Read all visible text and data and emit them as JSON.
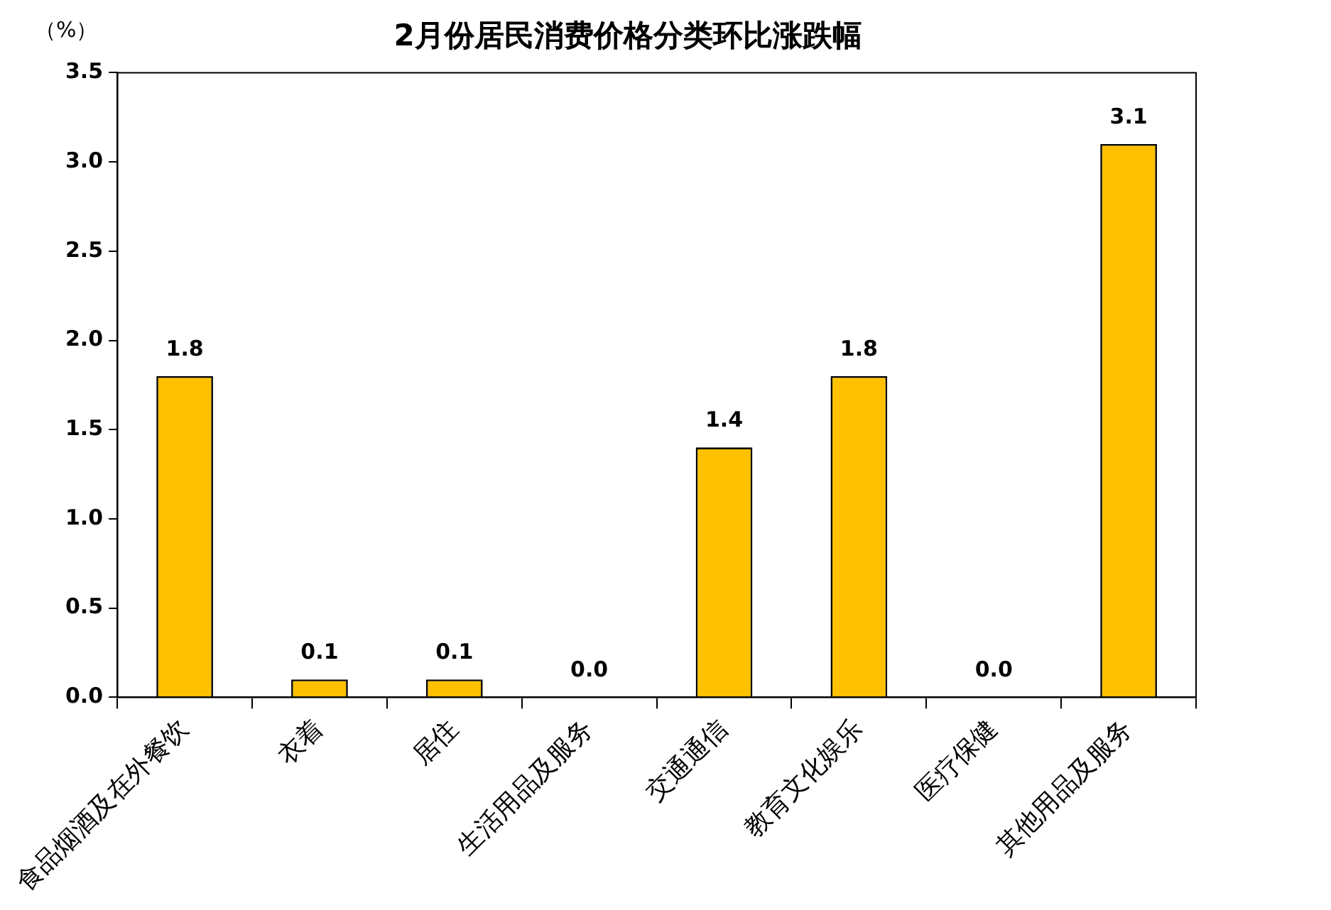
{
  "chart_data": {
    "type": "bar",
    "title": "2月份居民消费价格分类环比涨跌幅",
    "ylabel": "（%）",
    "categories": [
      "食品烟酒及在外餐饮",
      "衣着",
      "居住",
      "生活用品及服务",
      "交通通信",
      "教育文化娱乐",
      "医疗保健",
      "其他用品及服务"
    ],
    "values": [
      1.8,
      0.1,
      0.1,
      0,
      1.4,
      1.8,
      0,
      3.1
    ],
    "value_labels": [
      "1.8",
      "0.1",
      "0.1",
      "0.0",
      "1.4",
      "1.8",
      "0.0",
      "3.1"
    ],
    "color": "#ffc000",
    "ylim": [
      0,
      3.5
    ],
    "yticks": [
      {
        "value": 0,
        "label": "0.0"
      },
      0.5,
      {
        "value": 1,
        "label": "1.0"
      },
      1.5,
      {
        "value": 2,
        "label": "2.0"
      },
      2.5,
      {
        "value": 3,
        "label": "3.0"
      },
      3.5
    ]
  }
}
